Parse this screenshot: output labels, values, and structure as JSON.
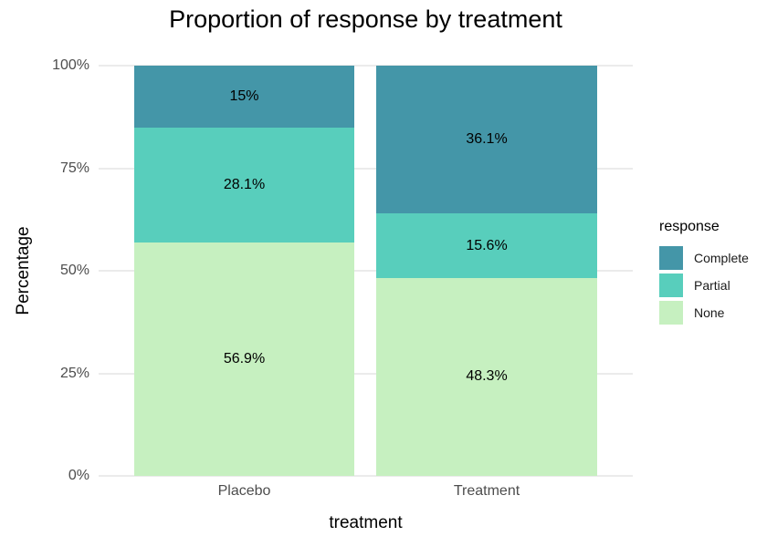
{
  "chart_data": {
    "type": "bar",
    "variant": "stacked-percent",
    "title": "Proportion of response by treatment",
    "xlabel": "treatment",
    "ylabel": "Percentage",
    "categories": [
      "Placebo",
      "Treatment"
    ],
    "series": [
      {
        "name": "Complete",
        "color": "#4496a8",
        "values": [
          15,
          36.1
        ],
        "labels": [
          "15%",
          "36.1%"
        ]
      },
      {
        "name": "Partial",
        "color": "#58cebc",
        "values": [
          28.1,
          15.6
        ],
        "labels": [
          "28.1%",
          "15.6%"
        ]
      },
      {
        "name": "None",
        "color": "#c6f0c0",
        "values": [
          56.9,
          48.3
        ],
        "labels": [
          "56.9%",
          "48.3%"
        ]
      }
    ],
    "y_ticks": [
      "0%",
      "25%",
      "50%",
      "75%",
      "100%"
    ],
    "ylim": [
      0,
      100
    ],
    "grid": "horizontal-major",
    "legend": {
      "title": "response",
      "position": "right",
      "entries": [
        "Complete",
        "Partial",
        "None"
      ]
    },
    "style": {
      "background": "#ffffff",
      "gridline_color": "#ebebeb",
      "tick_label_color": "#4d4d4d",
      "text_color": "#000000"
    }
  }
}
